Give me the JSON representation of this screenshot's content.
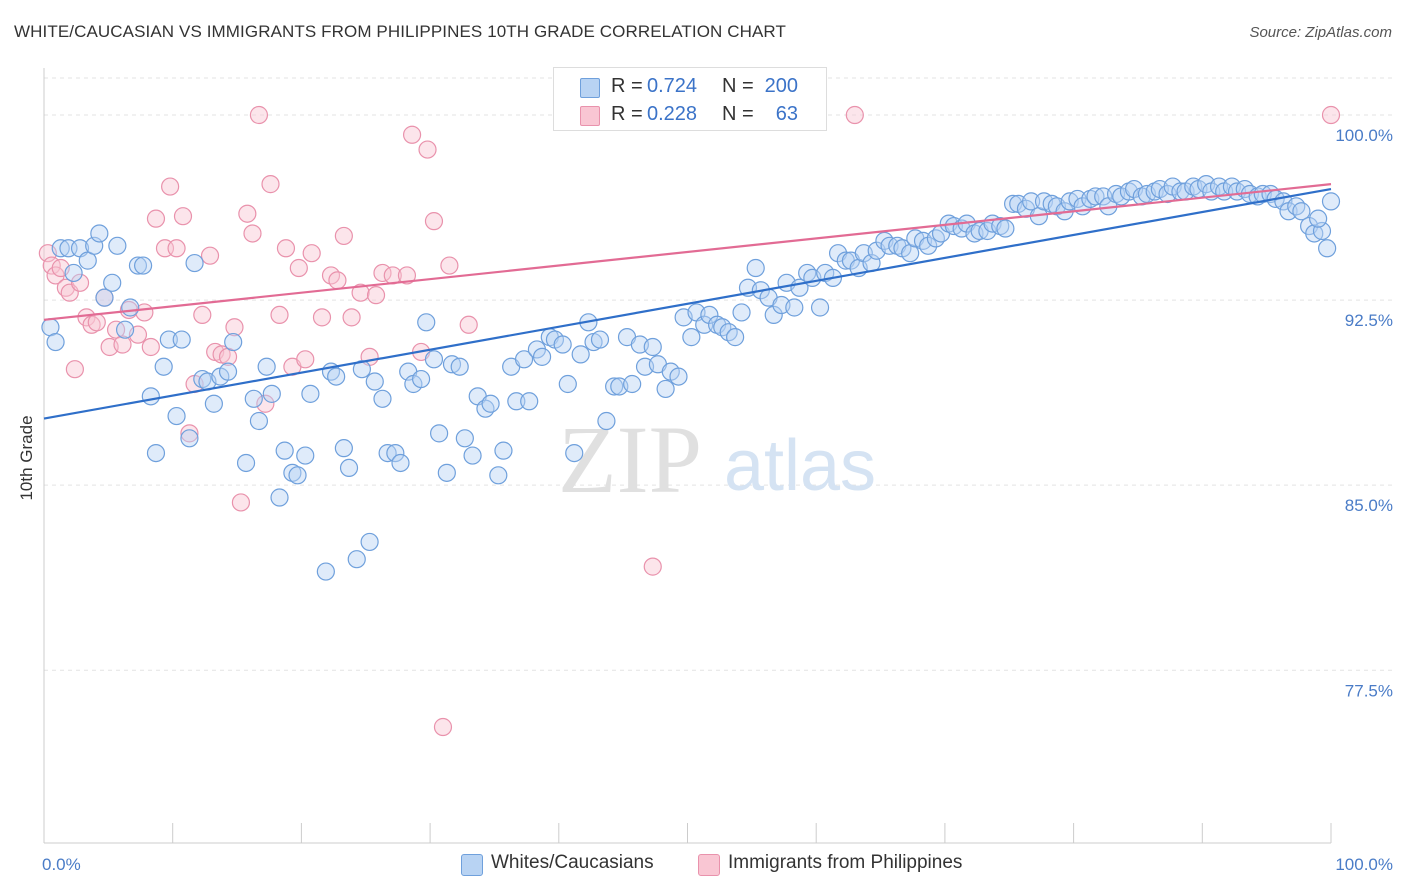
{
  "title": "WHITE/CAUCASIAN VS IMMIGRANTS FROM PHILIPPINES 10TH GRADE CORRELATION CHART",
  "source": "Source: ZipAtlas.com",
  "watermark": {
    "zip": "ZIP",
    "atlas": "atlas"
  },
  "legend": {
    "rows": [
      {
        "r_label": "R =",
        "r_value": "0.724",
        "n_label": "N =",
        "n_value": "200"
      },
      {
        "r_label": "R =",
        "r_value": "0.228",
        "n_label": "N =",
        "n_value": "63"
      }
    ]
  },
  "colors": {
    "blue_fill": "#b8d3f3",
    "blue_stroke": "#6fa0dc",
    "blue_line": "#2f6fc9",
    "pink_fill": "#f9c6d3",
    "pink_stroke": "#e992ac",
    "pink_line": "#e26b94",
    "tick_label": "#4a7cc7",
    "grid": "#e3e3e3"
  },
  "chart_data": {
    "type": "scatter",
    "title": "WHITE/CAUCASIAN VS IMMIGRANTS FROM PHILIPPINES 10TH GRADE CORRELATION CHART",
    "xlabel": "",
    "ylabel": "10th Grade",
    "xlim": [
      0,
      100
    ],
    "ylim": [
      70.5,
      101.5
    ],
    "x_tick_labels": [
      "0.0%",
      "100.0%"
    ],
    "y_ticks": [
      77.5,
      85.0,
      92.5,
      100.0
    ],
    "y_tick_labels": [
      "77.5%",
      "85.0%",
      "92.5%",
      "100.0%"
    ],
    "grid": true,
    "legend_position": "bottom",
    "series": [
      {
        "name": "Whites/Caucasians",
        "color": "#6fa0dc",
        "trend": {
          "x": [
            0,
            100
          ],
          "y": [
            87.7,
            97.0
          ]
        },
        "points": [
          [
            0.5,
            91.4
          ],
          [
            0.9,
            90.8
          ],
          [
            1.3,
            94.6
          ],
          [
            1.9,
            94.6
          ],
          [
            2.3,
            93.6
          ],
          [
            2.8,
            94.6
          ],
          [
            3.4,
            94.1
          ],
          [
            3.9,
            94.7
          ],
          [
            4.3,
            95.2
          ],
          [
            4.7,
            92.6
          ],
          [
            5.3,
            93.2
          ],
          [
            5.7,
            94.7
          ],
          [
            6.3,
            91.3
          ],
          [
            6.7,
            92.2
          ],
          [
            7.3,
            93.9
          ],
          [
            7.7,
            93.9
          ],
          [
            8.3,
            88.6
          ],
          [
            8.7,
            86.3
          ],
          [
            9.3,
            89.8
          ],
          [
            9.7,
            90.9
          ],
          [
            10.3,
            87.8
          ],
          [
            10.7,
            90.9
          ],
          [
            11.3,
            86.9
          ],
          [
            11.7,
            94.0
          ],
          [
            12.3,
            89.3
          ],
          [
            12.7,
            89.2
          ],
          [
            13.2,
            88.3
          ],
          [
            13.7,
            89.4
          ],
          [
            14.3,
            89.6
          ],
          [
            14.7,
            90.8
          ],
          [
            15.7,
            85.9
          ],
          [
            16.3,
            88.5
          ],
          [
            16.7,
            87.6
          ],
          [
            17.3,
            89.8
          ],
          [
            17.7,
            88.7
          ],
          [
            18.3,
            84.5
          ],
          [
            18.7,
            86.4
          ],
          [
            19.3,
            85.5
          ],
          [
            19.7,
            85.4
          ],
          [
            20.3,
            86.2
          ],
          [
            20.7,
            88.7
          ],
          [
            21.9,
            81.5
          ],
          [
            22.3,
            89.6
          ],
          [
            22.7,
            89.4
          ],
          [
            23.3,
            86.5
          ],
          [
            23.7,
            85.7
          ],
          [
            24.3,
            82.0
          ],
          [
            24.7,
            89.7
          ],
          [
            25.3,
            82.7
          ],
          [
            25.7,
            89.2
          ],
          [
            26.3,
            88.5
          ],
          [
            26.7,
            86.3
          ],
          [
            27.3,
            86.3
          ],
          [
            27.7,
            85.9
          ],
          [
            28.3,
            89.6
          ],
          [
            28.7,
            89.1
          ],
          [
            29.3,
            89.3
          ],
          [
            29.7,
            91.6
          ],
          [
            30.3,
            90.1
          ],
          [
            30.7,
            87.1
          ],
          [
            31.3,
            85.5
          ],
          [
            31.7,
            89.9
          ],
          [
            32.3,
            89.8
          ],
          [
            32.7,
            86.9
          ],
          [
            33.3,
            86.2
          ],
          [
            33.7,
            88.6
          ],
          [
            34.3,
            88.1
          ],
          [
            34.7,
            88.3
          ],
          [
            35.3,
            85.4
          ],
          [
            35.7,
            86.4
          ],
          [
            36.3,
            89.8
          ],
          [
            36.7,
            88.4
          ],
          [
            37.3,
            90.1
          ],
          [
            37.7,
            88.4
          ],
          [
            38.3,
            90.5
          ],
          [
            38.7,
            90.2
          ],
          [
            39.3,
            91.0
          ],
          [
            39.7,
            90.9
          ],
          [
            40.3,
            90.7
          ],
          [
            40.7,
            89.1
          ],
          [
            41.2,
            86.3
          ],
          [
            41.7,
            90.3
          ],
          [
            42.3,
            91.6
          ],
          [
            42.7,
            90.8
          ],
          [
            43.2,
            90.9
          ],
          [
            43.7,
            87.6
          ],
          [
            44.3,
            89.0
          ],
          [
            44.7,
            89.0
          ],
          [
            45.3,
            91.0
          ],
          [
            45.7,
            89.1
          ],
          [
            46.3,
            90.7
          ],
          [
            46.7,
            89.8
          ],
          [
            47.3,
            90.6
          ],
          [
            47.7,
            89.9
          ],
          [
            48.3,
            88.9
          ],
          [
            48.7,
            89.6
          ],
          [
            49.3,
            89.4
          ],
          [
            49.7,
            91.8
          ],
          [
            50.3,
            91.0
          ],
          [
            50.7,
            92.0
          ],
          [
            51.3,
            91.5
          ],
          [
            51.7,
            91.9
          ],
          [
            52.3,
            91.5
          ],
          [
            52.7,
            91.4
          ],
          [
            53.2,
            91.2
          ],
          [
            53.7,
            91.0
          ],
          [
            54.2,
            92.0
          ],
          [
            54.7,
            93.0
          ],
          [
            55.3,
            93.8
          ],
          [
            55.7,
            92.9
          ],
          [
            56.3,
            92.6
          ],
          [
            56.7,
            91.9
          ],
          [
            57.3,
            92.3
          ],
          [
            57.7,
            93.2
          ],
          [
            58.3,
            92.2
          ],
          [
            58.7,
            93.0
          ],
          [
            59.3,
            93.6
          ],
          [
            59.7,
            93.4
          ],
          [
            60.3,
            92.2
          ],
          [
            60.7,
            93.6
          ],
          [
            61.3,
            93.4
          ],
          [
            61.7,
            94.4
          ],
          [
            62.3,
            94.1
          ],
          [
            62.7,
            94.1
          ],
          [
            63.3,
            93.8
          ],
          [
            63.7,
            94.4
          ],
          [
            64.3,
            94.0
          ],
          [
            64.7,
            94.5
          ],
          [
            65.3,
            94.9
          ],
          [
            65.7,
            94.7
          ],
          [
            66.3,
            94.7
          ],
          [
            66.7,
            94.6
          ],
          [
            67.3,
            94.4
          ],
          [
            67.7,
            95.0
          ],
          [
            68.3,
            94.9
          ],
          [
            68.7,
            94.7
          ],
          [
            69.3,
            95.0
          ],
          [
            69.7,
            95.2
          ],
          [
            70.3,
            95.6
          ],
          [
            70.7,
            95.5
          ],
          [
            71.3,
            95.4
          ],
          [
            71.7,
            95.6
          ],
          [
            72.3,
            95.2
          ],
          [
            72.7,
            95.3
          ],
          [
            73.3,
            95.3
          ],
          [
            73.7,
            95.6
          ],
          [
            74.3,
            95.5
          ],
          [
            74.7,
            95.4
          ],
          [
            75.3,
            96.4
          ],
          [
            75.7,
            96.4
          ],
          [
            76.3,
            96.2
          ],
          [
            76.7,
            96.5
          ],
          [
            77.3,
            95.9
          ],
          [
            77.7,
            96.5
          ],
          [
            78.3,
            96.4
          ],
          [
            78.7,
            96.3
          ],
          [
            79.3,
            96.1
          ],
          [
            79.7,
            96.5
          ],
          [
            80.3,
            96.6
          ],
          [
            80.7,
            96.3
          ],
          [
            81.3,
            96.6
          ],
          [
            81.7,
            96.7
          ],
          [
            82.3,
            96.7
          ],
          [
            82.7,
            96.3
          ],
          [
            83.3,
            96.8
          ],
          [
            83.7,
            96.7
          ],
          [
            84.3,
            96.9
          ],
          [
            84.7,
            97.0
          ],
          [
            85.3,
            96.7
          ],
          [
            85.7,
            96.8
          ],
          [
            86.3,
            96.9
          ],
          [
            86.7,
            97.0
          ],
          [
            87.3,
            96.8
          ],
          [
            87.7,
            97.1
          ],
          [
            88.3,
            96.9
          ],
          [
            88.7,
            96.9
          ],
          [
            89.3,
            97.1
          ],
          [
            89.7,
            97.0
          ],
          [
            90.3,
            97.2
          ],
          [
            90.7,
            96.9
          ],
          [
            91.3,
            97.1
          ],
          [
            91.7,
            96.9
          ],
          [
            92.3,
            97.1
          ],
          [
            92.7,
            96.9
          ],
          [
            93.3,
            97.0
          ],
          [
            93.7,
            96.8
          ],
          [
            94.3,
            96.7
          ],
          [
            94.7,
            96.8
          ],
          [
            95.3,
            96.8
          ],
          [
            95.7,
            96.6
          ],
          [
            96.3,
            96.5
          ],
          [
            96.7,
            96.1
          ],
          [
            97.3,
            96.3
          ],
          [
            97.7,
            96.1
          ],
          [
            98.3,
            95.5
          ],
          [
            98.7,
            95.2
          ],
          [
            99.3,
            95.3
          ],
          [
            99.7,
            94.6
          ],
          [
            100.0,
            96.5
          ],
          [
            99.0,
            95.8
          ]
        ]
      },
      {
        "name": "Immigrants from Philippines",
        "color": "#e992ac",
        "trend": {
          "x": [
            0,
            100
          ],
          "y": [
            91.7,
            97.2
          ]
        },
        "points": [
          [
            0.3,
            94.4
          ],
          [
            0.6,
            93.9
          ],
          [
            0.9,
            93.5
          ],
          [
            1.3,
            93.8
          ],
          [
            1.7,
            93.0
          ],
          [
            2.0,
            92.8
          ],
          [
            2.4,
            89.7
          ],
          [
            2.8,
            93.2
          ],
          [
            3.3,
            91.8
          ],
          [
            3.7,
            91.5
          ],
          [
            4.1,
            91.6
          ],
          [
            4.7,
            92.6
          ],
          [
            5.1,
            90.6
          ],
          [
            5.6,
            91.3
          ],
          [
            6.1,
            90.7
          ],
          [
            6.6,
            92.1
          ],
          [
            7.3,
            91.1
          ],
          [
            7.8,
            92.0
          ],
          [
            8.3,
            90.6
          ],
          [
            8.7,
            95.8
          ],
          [
            9.4,
            94.6
          ],
          [
            9.8,
            97.1
          ],
          [
            10.3,
            94.6
          ],
          [
            10.8,
            95.9
          ],
          [
            11.3,
            87.1
          ],
          [
            11.7,
            89.1
          ],
          [
            12.3,
            91.9
          ],
          [
            12.9,
            94.3
          ],
          [
            13.3,
            90.4
          ],
          [
            13.8,
            90.3
          ],
          [
            14.3,
            90.2
          ],
          [
            14.8,
            91.4
          ],
          [
            15.3,
            84.3
          ],
          [
            15.8,
            96.0
          ],
          [
            16.2,
            95.2
          ],
          [
            16.7,
            100.0
          ],
          [
            17.2,
            88.3
          ],
          [
            17.6,
            97.2
          ],
          [
            18.3,
            91.9
          ],
          [
            18.8,
            94.6
          ],
          [
            19.3,
            89.8
          ],
          [
            19.8,
            93.8
          ],
          [
            20.3,
            90.1
          ],
          [
            20.8,
            94.4
          ],
          [
            21.6,
            91.8
          ],
          [
            22.3,
            93.5
          ],
          [
            22.8,
            93.3
          ],
          [
            23.3,
            95.1
          ],
          [
            23.9,
            91.8
          ],
          [
            24.6,
            92.8
          ],
          [
            25.3,
            90.2
          ],
          [
            25.8,
            92.7
          ],
          [
            26.3,
            93.6
          ],
          [
            27.1,
            93.5
          ],
          [
            28.2,
            93.5
          ],
          [
            28.6,
            99.2
          ],
          [
            29.3,
            90.4
          ],
          [
            29.8,
            98.6
          ],
          [
            30.3,
            95.7
          ],
          [
            31.0,
            75.2
          ],
          [
            31.5,
            93.9
          ],
          [
            33.0,
            91.5
          ],
          [
            47.3,
            81.7
          ]
        ]
      }
    ]
  },
  "extra_points": {
    "pink_top": [
      [
        60.0,
        100.0
      ],
      [
        63.0,
        100.0
      ],
      [
        100.0,
        100.0
      ]
    ]
  },
  "bottom_legend": {
    "items": [
      {
        "label": "Whites/Caucasians"
      },
      {
        "label": "Immigrants from Philippines"
      }
    ]
  }
}
